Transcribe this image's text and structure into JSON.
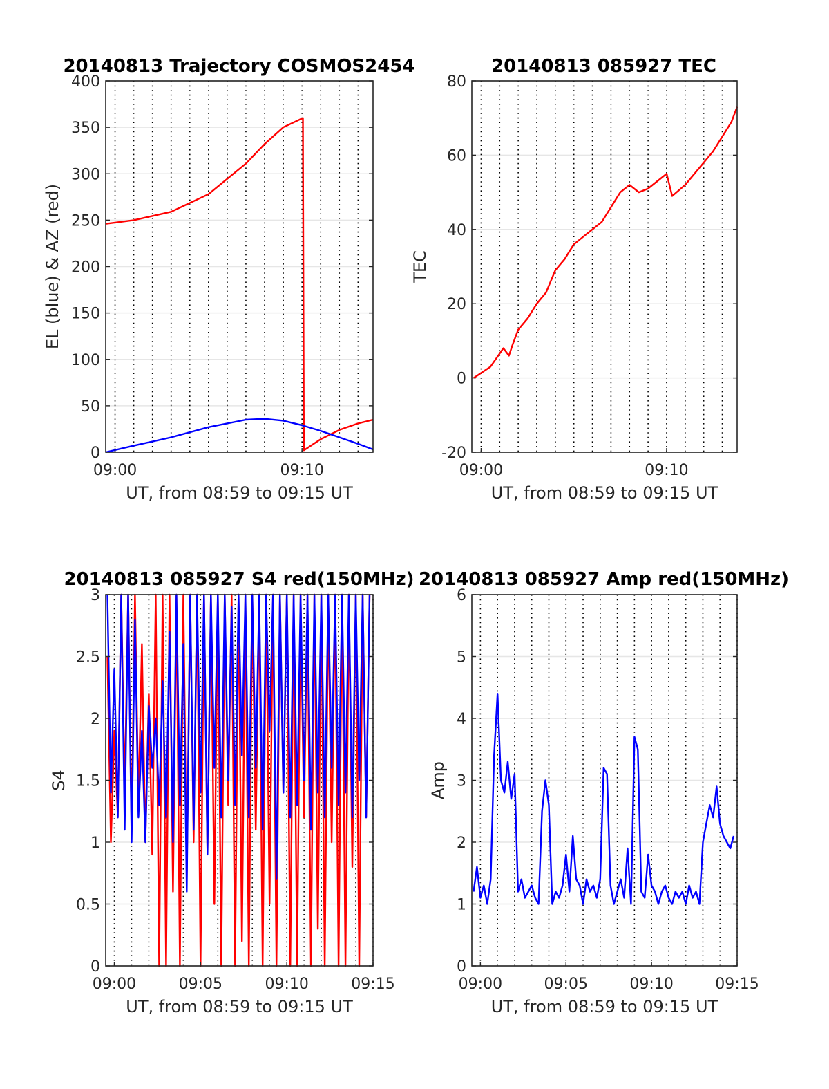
{
  "chart_data": [
    {
      "type": "line",
      "title": "20140813 Trajectory COSMOS2454",
      "xlabel": "UT, from 08:59 to 09:15 UT",
      "ylabel": "EL (blue) & AZ (red)",
      "xlim": [
        -0.5,
        13.8
      ],
      "ylim": [
        0,
        400
      ],
      "xticks": [
        0,
        10
      ],
      "xticklabels": [
        "09:00",
        "09:10"
      ],
      "yticks": [
        0,
        50,
        100,
        150,
        200,
        250,
        300,
        350,
        400
      ],
      "yticklabels": [
        "0",
        "50",
        "100",
        "150",
        "200",
        "250",
        "300",
        "350",
        "400"
      ],
      "grid": "dotted vertical, light horizontal",
      "series": [
        {
          "color": "#ff0000",
          "x": [
            -0.5,
            1,
            3,
            5,
            7,
            8,
            9,
            10.05,
            10.1,
            11,
            12,
            13,
            13.8
          ],
          "values": [
            246,
            250,
            259,
            278,
            311,
            332,
            350,
            360,
            2,
            14,
            24,
            31,
            35
          ]
        },
        {
          "color": "#0000ff",
          "x": [
            -0.5,
            1,
            3,
            5,
            7,
            8,
            9,
            10,
            11,
            12,
            13,
            13.8
          ],
          "values": [
            0,
            7,
            16,
            27,
            35,
            36,
            34,
            29,
            23,
            16,
            9,
            3
          ]
        }
      ]
    },
    {
      "type": "line",
      "title": "20140813 085927 TEC",
      "xlabel": "UT, from 08:59 to 09:15 UT",
      "ylabel": "TEC",
      "xlim": [
        -0.5,
        13.8
      ],
      "ylim": [
        -20,
        80
      ],
      "xticks": [
        0,
        10
      ],
      "xticklabels": [
        "09:00",
        "09:10"
      ],
      "yticks": [
        -20,
        0,
        20,
        40,
        60,
        80
      ],
      "yticklabels": [
        "-20",
        "0",
        "20",
        "40",
        "60",
        "80"
      ],
      "grid": "dotted vertical, light horizontal",
      "series": [
        {
          "color": "#ff0000",
          "x": [
            -0.4,
            0.5,
            1.2,
            1.5,
            1.7,
            2.0,
            2.5,
            3.0,
            3.5,
            4.0,
            4.5,
            5.0,
            5.5,
            6.0,
            6.5,
            7.0,
            7.5,
            8.0,
            8.5,
            9.0,
            9.5,
            10.0,
            10.3,
            11.0,
            11.5,
            12.0,
            12.5,
            13.0,
            13.5,
            13.8
          ],
          "values": [
            0,
            3,
            8,
            6,
            9,
            13,
            16,
            20,
            23,
            29,
            32,
            36,
            38,
            40,
            42,
            46,
            50,
            52,
            50,
            51,
            53,
            55,
            49,
            52,
            55,
            58,
            61,
            65,
            69,
            73
          ]
        }
      ]
    },
    {
      "type": "line",
      "title": "20140813 085927 S4 red(150MHz)",
      "xlabel": "UT, from 08:59 to 09:15 UT",
      "ylabel": "S4",
      "xlim": [
        -0.5,
        15.0
      ],
      "ylim": [
        0,
        3
      ],
      "xticks": [
        0,
        5,
        10,
        15
      ],
      "xticklabels": [
        "09:00",
        "09:05",
        "09:10",
        "09:15"
      ],
      "yticks": [
        0,
        0.5,
        1,
        1.5,
        2,
        2.5,
        3
      ],
      "yticklabels": [
        "0",
        "0.5",
        "1",
        "1.5",
        "2",
        "2.5",
        "3"
      ],
      "grid": "dotted vertical, light horizontal",
      "series": [
        {
          "color": "#ff0000",
          "x": [
            -0.4,
            -0.2,
            0.0,
            0.2,
            0.4,
            0.6,
            0.8,
            1.0,
            1.2,
            1.4,
            1.6,
            1.8,
            2.0,
            2.2,
            2.4,
            2.6,
            2.8,
            3.0,
            3.2,
            3.4,
            3.6,
            3.8,
            4.0,
            4.2,
            4.4,
            4.6,
            4.8,
            5.0,
            5.2,
            5.4,
            5.6,
            5.8,
            6.0,
            6.2,
            6.4,
            6.6,
            6.8,
            7.0,
            7.2,
            7.4,
            7.6,
            7.8,
            8.0,
            8.2,
            8.4,
            8.6,
            8.8,
            9.0,
            9.2,
            9.4,
            9.6,
            9.8,
            10.0,
            10.2,
            10.4,
            10.6,
            10.8,
            11.0,
            11.2,
            11.4,
            11.6,
            11.8,
            12.0,
            12.2,
            12.4,
            12.6,
            12.8,
            13.0,
            13.2,
            13.4,
            13.6,
            13.8,
            14.0,
            14.2,
            14.4,
            14.6,
            14.8
          ],
          "values": [
            2.5,
            1.0,
            1.9,
            1.2,
            3.0,
            1.4,
            3.0,
            1.1,
            3.0,
            1.3,
            2.6,
            1.0,
            2.2,
            0.9,
            3.0,
            0.0,
            3.0,
            0.0,
            3.0,
            0.6,
            3.0,
            0.0,
            3.0,
            0.7,
            3.0,
            1.0,
            3.0,
            0.0,
            3.0,
            0.9,
            3.0,
            0.5,
            3.0,
            0.0,
            3.0,
            1.3,
            3.0,
            0.0,
            3.0,
            0.2,
            3.0,
            0.0,
            3.0,
            1.1,
            3.0,
            0.0,
            3.0,
            0.5,
            3.0,
            0.0,
            3.0,
            1.4,
            3.0,
            0.0,
            3.0,
            0.0,
            3.0,
            1.2,
            3.0,
            0.0,
            3.0,
            0.3,
            3.0,
            0.0,
            3.0,
            1.0,
            3.0,
            0.0,
            3.0,
            0.0,
            3.0,
            0.8,
            3.0,
            0.0,
            3.0,
            1.2,
            3.0
          ]
        },
        {
          "color": "#0000ff",
          "x": [
            -0.4,
            -0.2,
            0.0,
            0.2,
            0.4,
            0.6,
            0.8,
            1.0,
            1.2,
            1.4,
            1.6,
            1.8,
            2.0,
            2.2,
            2.4,
            2.6,
            2.8,
            3.0,
            3.2,
            3.4,
            3.6,
            3.8,
            4.0,
            4.2,
            4.4,
            4.6,
            4.8,
            5.0,
            5.2,
            5.4,
            5.6,
            5.8,
            6.0,
            6.2,
            6.4,
            6.6,
            6.8,
            7.0,
            7.2,
            7.4,
            7.6,
            7.8,
            8.0,
            8.2,
            8.4,
            8.6,
            8.8,
            9.0,
            9.2,
            9.4,
            9.6,
            9.8,
            10.0,
            10.2,
            10.4,
            10.6,
            10.8,
            11.0,
            11.2,
            11.4,
            11.6,
            11.8,
            12.0,
            12.2,
            12.4,
            12.6,
            12.8,
            13.0,
            13.2,
            13.4,
            13.6,
            13.8,
            14.0,
            14.2,
            14.4,
            14.6,
            14.8
          ],
          "values": [
            3.0,
            1.4,
            2.4,
            1.2,
            3.0,
            1.1,
            3.0,
            1.0,
            2.8,
            1.2,
            1.9,
            1.0,
            2.1,
            1.6,
            2.0,
            1.3,
            2.3,
            1.2,
            2.7,
            1.0,
            3.0,
            1.3,
            2.6,
            0.6,
            3.0,
            1.1,
            3.0,
            1.4,
            3.0,
            0.9,
            3.0,
            1.6,
            3.0,
            1.2,
            3.0,
            1.5,
            2.9,
            1.3,
            3.0,
            1.7,
            3.0,
            1.2,
            3.0,
            1.6,
            3.0,
            1.1,
            3.0,
            1.9,
            3.0,
            0.7,
            3.0,
            1.4,
            3.0,
            1.2,
            3.0,
            1.3,
            3.0,
            1.5,
            3.0,
            1.1,
            3.0,
            1.4,
            3.0,
            1.2,
            3.0,
            1.6,
            3.0,
            1.3,
            3.0,
            1.4,
            3.0,
            1.2,
            3.0,
            1.5,
            3.0,
            1.2,
            3.0
          ]
        }
      ]
    },
    {
      "type": "line",
      "title": "20140813 085927 Amp red(150MHz)",
      "xlabel": "UT, from 08:59 to 09:15 UT",
      "ylabel": "Amp",
      "xlim": [
        -0.5,
        15.0
      ],
      "ylim": [
        0,
        6
      ],
      "xticks": [
        0,
        5,
        10,
        15
      ],
      "xticklabels": [
        "09:00",
        "09:05",
        "09:10",
        "09:15"
      ],
      "yticks": [
        0,
        1,
        2,
        3,
        4,
        5,
        6
      ],
      "yticklabels": [
        "0",
        "1",
        "2",
        "3",
        "4",
        "5",
        "6"
      ],
      "grid": "dotted vertical, light horizontal",
      "series": [
        {
          "color": "#0000ff",
          "x": [
            -0.4,
            -0.2,
            0.0,
            0.2,
            0.4,
            0.6,
            0.8,
            1.0,
            1.2,
            1.4,
            1.6,
            1.8,
            2.0,
            2.2,
            2.4,
            2.6,
            2.8,
            3.0,
            3.2,
            3.4,
            3.6,
            3.8,
            4.0,
            4.2,
            4.4,
            4.6,
            4.8,
            5.0,
            5.2,
            5.4,
            5.6,
            5.8,
            6.0,
            6.2,
            6.4,
            6.6,
            6.8,
            7.0,
            7.2,
            7.4,
            7.6,
            7.8,
            8.0,
            8.2,
            8.4,
            8.6,
            8.8,
            9.0,
            9.2,
            9.4,
            9.6,
            9.8,
            10.0,
            10.2,
            10.4,
            10.6,
            10.8,
            11.0,
            11.2,
            11.4,
            11.6,
            11.8,
            12.0,
            12.2,
            12.4,
            12.6,
            12.8,
            13.0,
            13.2,
            13.4,
            13.6,
            13.8,
            14.0,
            14.2,
            14.4,
            14.6,
            14.8
          ],
          "values": [
            1.2,
            1.6,
            1.1,
            1.3,
            1.0,
            1.4,
            3.4,
            4.4,
            3.0,
            2.8,
            3.3,
            2.7,
            3.1,
            1.2,
            1.4,
            1.1,
            1.2,
            1.3,
            1.1,
            1.0,
            2.5,
            3.0,
            2.6,
            1.0,
            1.2,
            1.1,
            1.3,
            1.8,
            1.2,
            2.1,
            1.4,
            1.3,
            1.0,
            1.4,
            1.2,
            1.3,
            1.1,
            1.4,
            3.2,
            3.1,
            1.3,
            1.0,
            1.2,
            1.4,
            1.1,
            1.9,
            1.0,
            3.7,
            3.5,
            1.2,
            1.1,
            1.8,
            1.3,
            1.2,
            1.0,
            1.2,
            1.3,
            1.1,
            1.0,
            1.2,
            1.1,
            1.2,
            1.0,
            1.3,
            1.1,
            1.2,
            1.0,
            2.0,
            2.3,
            2.6,
            2.4,
            2.9,
            2.3,
            2.1,
            2.0,
            1.9,
            2.1
          ]
        }
      ]
    }
  ]
}
